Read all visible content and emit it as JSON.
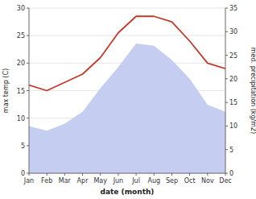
{
  "chart_data": {
    "type": "line",
    "xlabel": "date (month)",
    "ylabel": "max temp (C)",
    "y2label": "med. precipitation (kg/m2)",
    "categories": [
      "Jan",
      "Feb",
      "Mar",
      "Apr",
      "May",
      "Jun",
      "Jul",
      "Aug",
      "Sep",
      "Oct",
      "Nov",
      "Dec"
    ],
    "series": [
      {
        "type": "area",
        "axis": "y2",
        "color": "#c5cef0",
        "values": [
          10.0,
          9.0,
          10.5,
          13.0,
          18.0,
          22.5,
          27.5,
          27.0,
          24.0,
          20.0,
          14.5,
          13.0
        ]
      },
      {
        "type": "line",
        "color": "#c0392b",
        "values": [
          16.0,
          15.0,
          16.5,
          18.0,
          21.0,
          25.5,
          28.5,
          28.5,
          27.5,
          24.0,
          20.0,
          19.0
        ]
      }
    ],
    "ylim": [
      0,
      30
    ],
    "yticks": [
      0,
      5,
      10,
      15,
      20,
      25,
      30
    ],
    "y2lim": [
      0,
      35
    ],
    "y2ticks": [
      0,
      5,
      10,
      15,
      20,
      25,
      30,
      35
    ],
    "grid": true
  }
}
